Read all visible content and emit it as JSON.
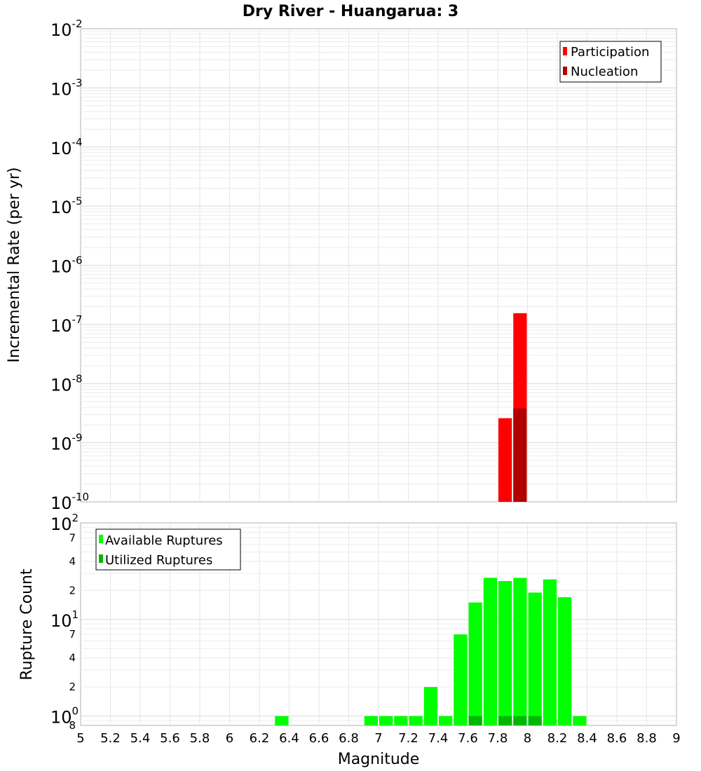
{
  "chart_data": {
    "title": "Dry River - Huangarua: 3",
    "type": "bar",
    "xlabel": "Magnitude",
    "xlim": [
      5,
      9
    ],
    "x_ticks": [
      "5",
      "5.2",
      "5.4",
      "5.6",
      "5.8",
      "6",
      "6.2",
      "6.4",
      "6.6",
      "6.8",
      "7",
      "7.2",
      "7.4",
      "7.6",
      "7.8",
      "8",
      "8.2",
      "8.4",
      "8.6",
      "8.8",
      "9"
    ],
    "bin_width": 0.1,
    "panels": [
      {
        "name": "rates",
        "ylabel": "Incremental Rate (per yr)",
        "yscale": "log",
        "ylim": [
          1e-10,
          0.01
        ],
        "y_tick_exponents": [
          "-10",
          "-9",
          "-8",
          "-7",
          "-6",
          "-5",
          "-4",
          "-3",
          "-2"
        ],
        "y_tick_base": "10",
        "legend": [
          {
            "label": "Participation",
            "color": "#ff0000"
          },
          {
            "label": "Nucleation",
            "color": "#b00000"
          }
        ],
        "series": [
          {
            "name": "Participation",
            "color": "#ff0000",
            "x": [
              7.85,
              7.95
            ],
            "values": [
              2.6e-09,
              1.55e-07
            ]
          },
          {
            "name": "Nucleation",
            "color": "#b00000",
            "x": [
              7.95
            ],
            "values": [
              3.8e-09
            ]
          }
        ]
      },
      {
        "name": "counts",
        "ylabel": "Rupture Count",
        "yscale": "log",
        "ylim": [
          0.8,
          100
        ],
        "y_major_ticks": [
          {
            "value": 1,
            "exp": "0"
          },
          {
            "value": 10,
            "exp": "1"
          },
          {
            "value": 100,
            "exp": "2"
          }
        ],
        "y_tick_base": "10",
        "y_minor_ticks": [
          {
            "value": 0.8,
            "label": "8"
          },
          {
            "value": 2,
            "label": "2"
          },
          {
            "value": 4,
            "label": "4"
          },
          {
            "value": 7,
            "label": "7"
          },
          {
            "value": 20,
            "label": "2"
          },
          {
            "value": 40,
            "label": "4"
          },
          {
            "value": 70,
            "label": "7"
          }
        ],
        "legend": [
          {
            "label": "Available Ruptures",
            "color": "#00ff00"
          },
          {
            "label": "Utilized Ruptures",
            "color": "#00b800"
          }
        ],
        "series": [
          {
            "name": "Available Ruptures",
            "color": "#00ff00",
            "x": [
              6.35,
              6.95,
              7.05,
              7.15,
              7.25,
              7.35,
              7.45,
              7.55,
              7.65,
              7.75,
              7.85,
              7.95,
              8.05,
              8.15,
              8.25,
              8.35
            ],
            "values": [
              1,
              1,
              1,
              1,
              1,
              2,
              1,
              7,
              15,
              27,
              25,
              27,
              19,
              26,
              17,
              1
            ]
          },
          {
            "name": "Utilized Ruptures",
            "color": "#00b800",
            "x": [
              7.65,
              7.85,
              7.95,
              8.05
            ],
            "values": [
              1,
              1,
              1,
              1
            ]
          }
        ]
      }
    ]
  }
}
